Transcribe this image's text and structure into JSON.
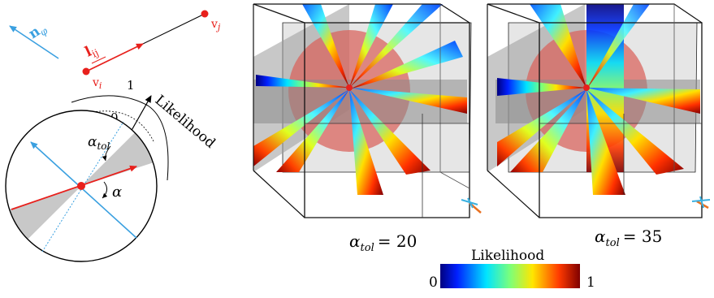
{
  "left_diagram": {
    "normal_symbol": "n",
    "normal_subscript": "φ",
    "edge_symbol": "l",
    "edge_subscript": "ij",
    "vertex_i_symbol": "v",
    "vertex_i_subscript": "i",
    "vertex_j_symbol": "v",
    "vertex_j_subscript": "j",
    "axis_one": "1",
    "axis_zero": "0",
    "likelihood_label": "Likelihood",
    "tolerance_symbol": "α",
    "tolerance_subscript": "tol",
    "angle_symbol": "α"
  },
  "panels": [
    {
      "caption_symbol": "α",
      "caption_subscript": "tol",
      "caption_value": "= 20"
    },
    {
      "caption_symbol": "α",
      "caption_subscript": "tol",
      "caption_value": "= 35"
    }
  ],
  "colorbar": {
    "title": "Likelihood",
    "min_label": "0",
    "max_label": "1",
    "colormap": "jet"
  },
  "colors": {
    "edge_red": "#e8201c",
    "normal_blue": "#3aa0e0",
    "sector_gray": "#c8c8c8",
    "sphere_red": "#d9665f"
  }
}
